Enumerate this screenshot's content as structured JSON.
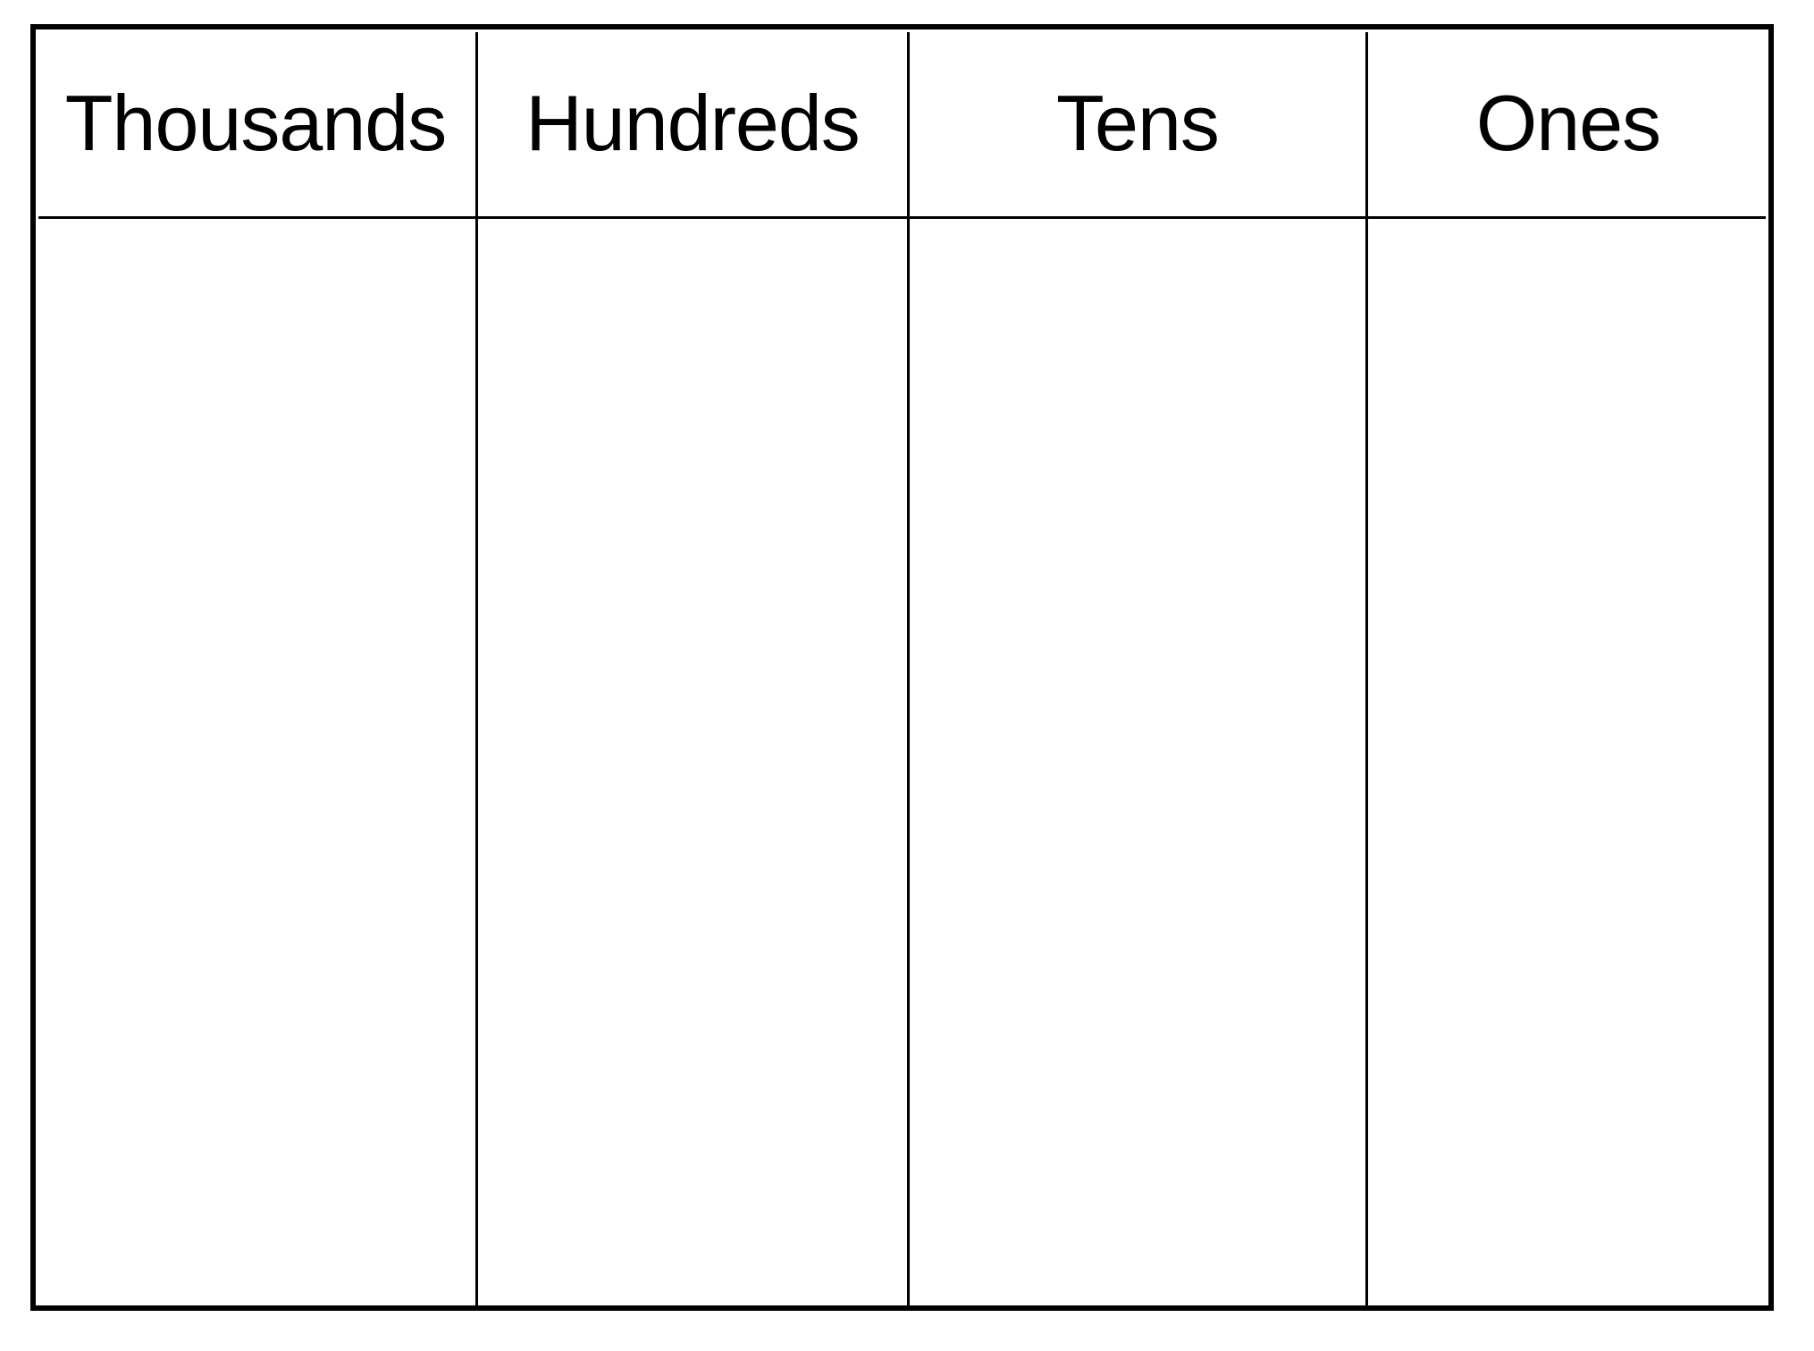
{
  "place_value_chart": {
    "columns": [
      {
        "label": "Thousands"
      },
      {
        "label": "Hundreds"
      },
      {
        "label": "Tens"
      },
      {
        "label": "Ones"
      }
    ]
  }
}
